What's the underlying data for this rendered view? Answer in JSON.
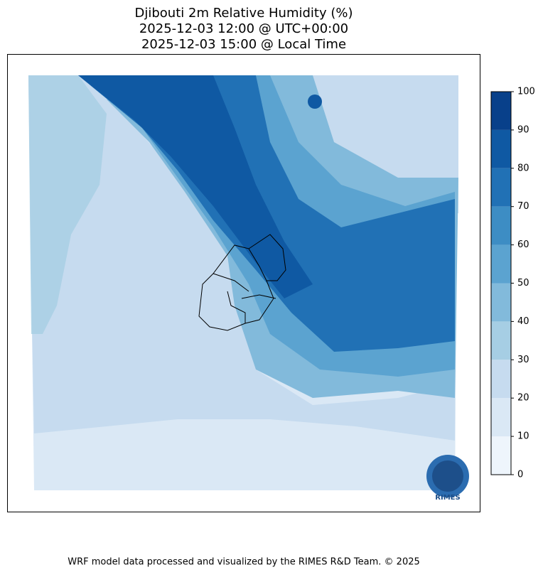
{
  "title": [
    "Djibouti 2m Relative Humidity (%)",
    "2025-12-03 12:00 @ UTC+00:00",
    "2025-12-03 15:00 @ Local Time"
  ],
  "colorbar": {
    "ticks": [
      0,
      10,
      20,
      30,
      40,
      50,
      60,
      70,
      80,
      90,
      100
    ],
    "colors": [
      "#eef5fc",
      "#dae8f5",
      "#c6dbef",
      "#a6cee4",
      "#82badb",
      "#5ba3d0",
      "#3d8dc4",
      "#2171b5",
      "#0f59a3",
      "#08408a"
    ]
  },
  "logo": "RIMES",
  "footer": "WRF model data processed and visualized by the RIMES R&D Team. © 2025"
}
